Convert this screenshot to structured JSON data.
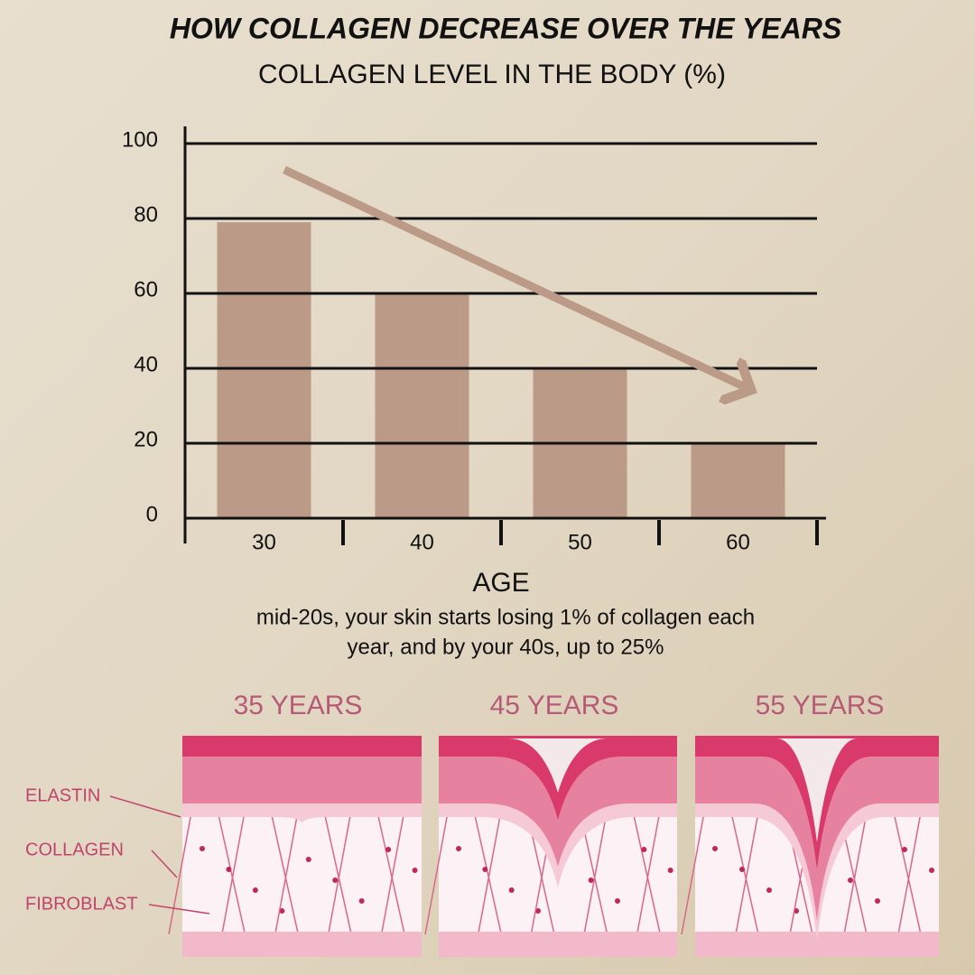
{
  "chart_data": {
    "type": "bar",
    "title": "HOW COLLAGEN DECREASE OVER THE YEARS",
    "subtitle": "COLLAGEN LEVEL IN THE BODY (%)",
    "x_label": "AGE",
    "annotation": [
      "mid-20s, your skin starts losing 1% of collagen each",
      "year, and by your 40s, up to 25%"
    ],
    "categories": [
      "30",
      "40",
      "50",
      "60"
    ],
    "values": [
      79,
      60,
      40,
      20
    ],
    "color": "#bb9b87",
    "ylim": [
      0,
      100
    ],
    "yticks": [
      0,
      20,
      40,
      60,
      80,
      100
    ],
    "grid": true
  },
  "diagram": {
    "panels": [
      "35 YEARS",
      "45 YEARS",
      "55 YEARS"
    ],
    "labels": [
      "ELASTIN",
      "COLLAGEN",
      "FIBROBLAST"
    ]
  }
}
